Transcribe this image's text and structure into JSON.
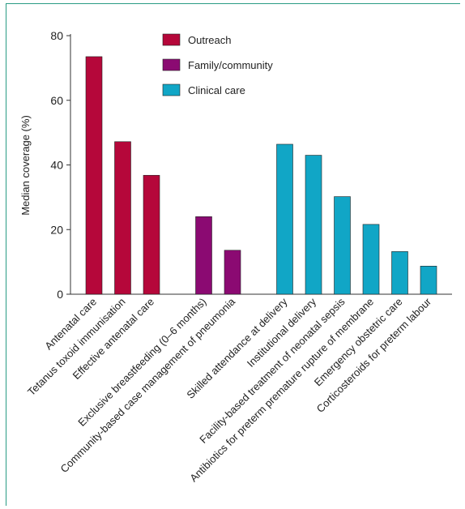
{
  "chart_data": {
    "type": "bar",
    "ylabel": "Median coverage (%)",
    "ylim": [
      0,
      80
    ],
    "yticks": [
      0,
      20,
      40,
      60,
      80
    ],
    "grid": false,
    "legend_position": "top-center",
    "colors": {
      "Outreach": "#b5073a",
      "Family/community": "#8b0a72",
      "Clinical care": "#11a6c6"
    },
    "series": [
      {
        "name": "Outreach",
        "categories": [
          "Antenatal care",
          "Tetanus toxoid immunisation",
          "Effective antenatal care"
        ],
        "values": [
          73.5,
          47.2,
          36.8
        ]
      },
      {
        "name": "Family/community",
        "categories": [
          "Exclusive breastfeeding (0–6 months)",
          "Community-based case management of pneumonia"
        ],
        "values": [
          24.0,
          13.6
        ]
      },
      {
        "name": "Clinical care",
        "categories": [
          "Skilled attendance at delivery",
          "Institutional delivery",
          "Facility-based treatment of neonatal sepsis",
          "Antibiotics for preterm premature rupture of membrane",
          "Emergency obstetric care",
          "Corticosteroids for preterm labour"
        ],
        "values": [
          46.4,
          43.0,
          30.2,
          21.6,
          13.2,
          8.7
        ]
      }
    ]
  }
}
